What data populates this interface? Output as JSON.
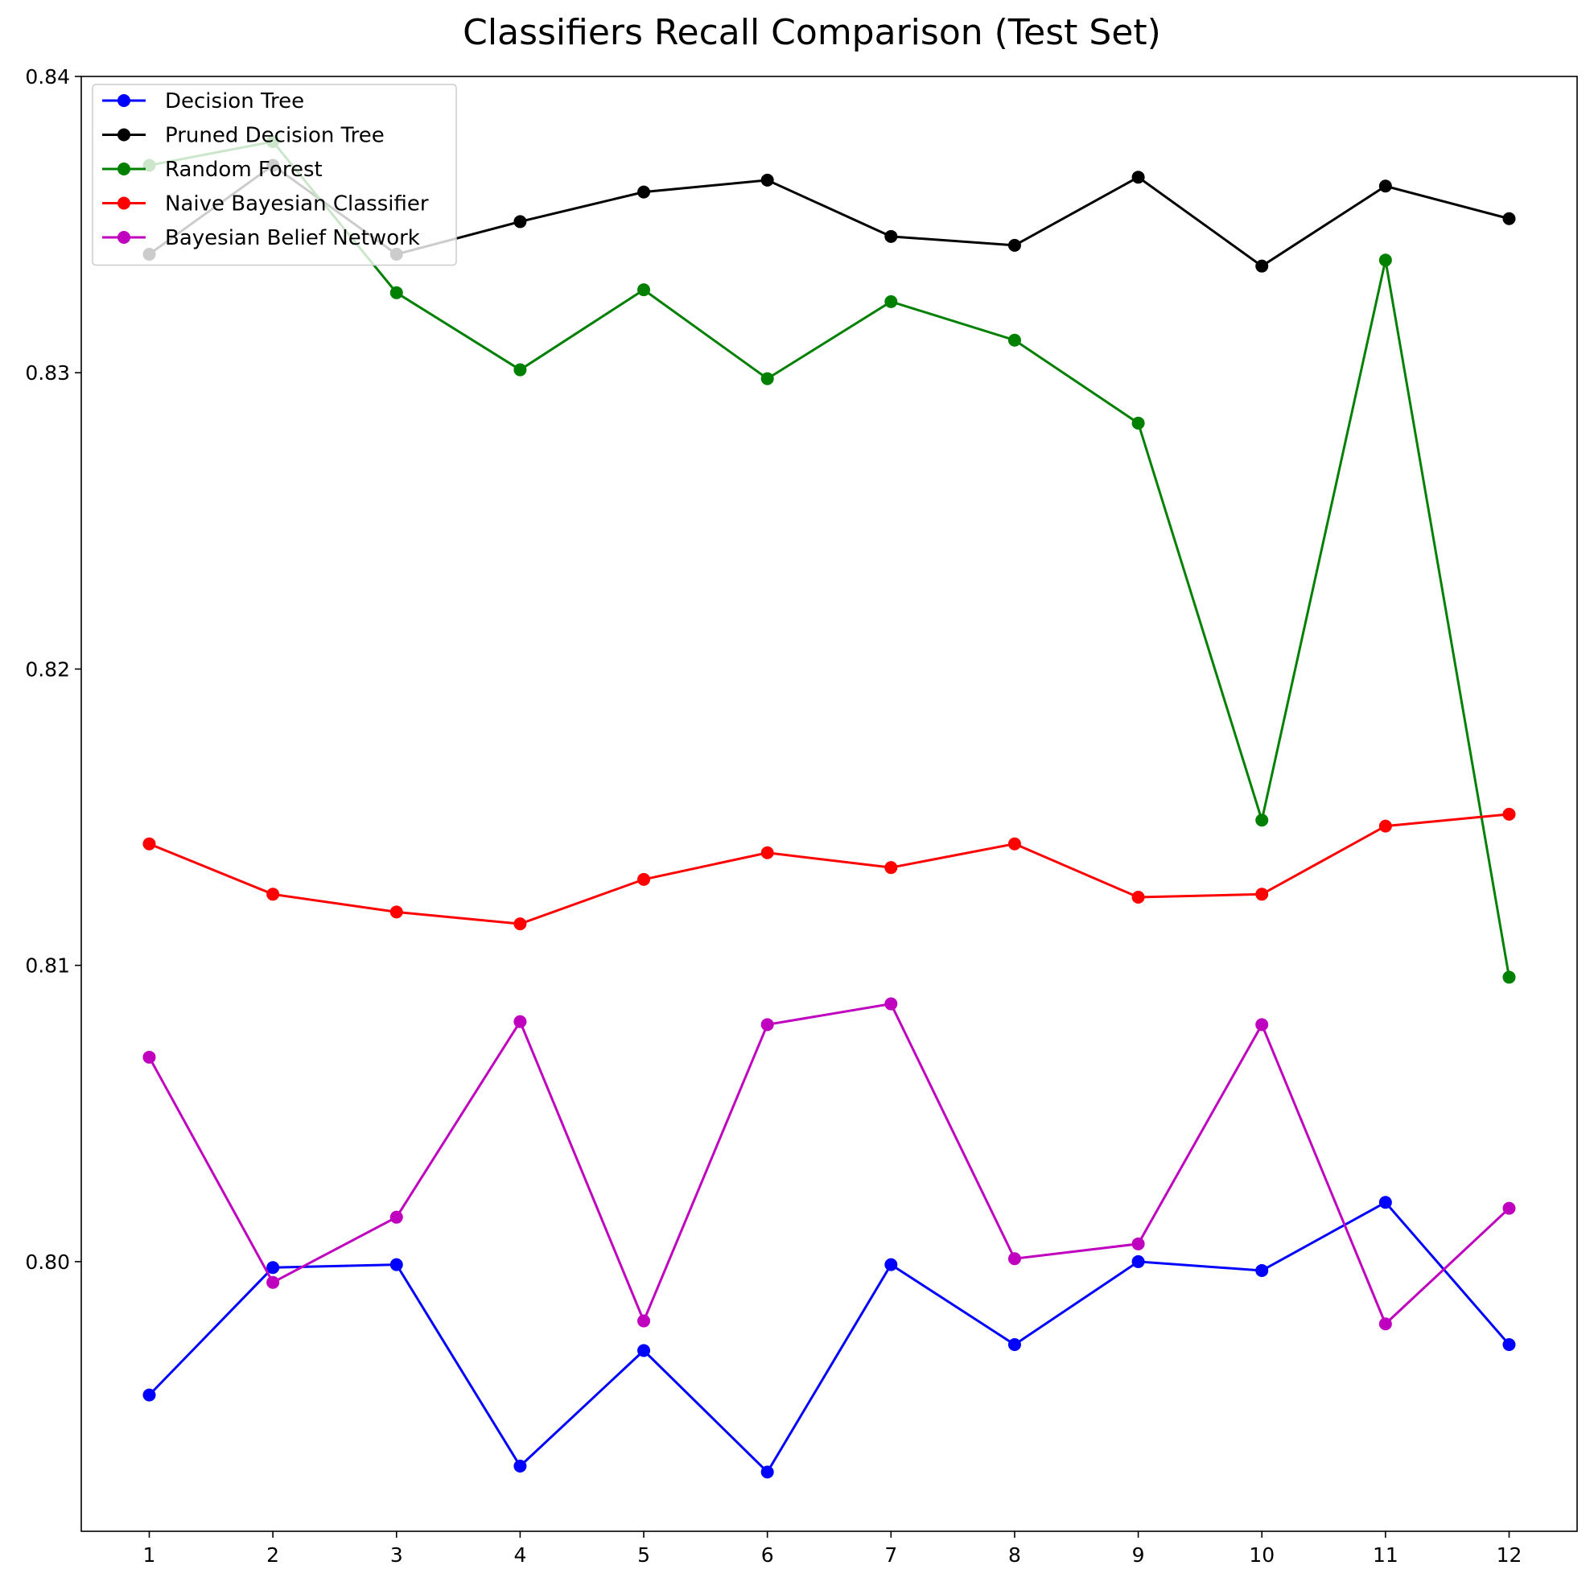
{
  "chart_data": {
    "type": "line",
    "title": "Classifiers Recall Comparison (Test Set)",
    "xlabel": "",
    "ylabel": "",
    "x": [
      1,
      2,
      3,
      4,
      5,
      6,
      7,
      8,
      9,
      10,
      11,
      12
    ],
    "xlim": [
      0.45,
      12.55
    ],
    "ylim": [
      0.7909,
      0.84
    ],
    "yticks": [
      0.8,
      0.81,
      0.82,
      0.83,
      0.84
    ],
    "ytick_labels": [
      "0.80",
      "0.81",
      "0.82",
      "0.83",
      "0.84"
    ],
    "grid": false,
    "legend_position": "top-left",
    "series": [
      {
        "name": "Decision Tree",
        "color": "#0000ff",
        "values": [
          0.7955,
          0.7998,
          0.7999,
          0.7931,
          0.797,
          0.7929,
          0.7999,
          0.7972,
          0.8,
          0.7997,
          0.802,
          0.7972
        ]
      },
      {
        "name": "Pruned Decision Tree",
        "color": "#000000",
        "values": [
          0.834,
          0.837,
          0.834,
          0.8351,
          0.8361,
          0.8365,
          0.8346,
          0.8343,
          0.8366,
          0.8336,
          0.8363,
          0.8352
        ]
      },
      {
        "name": "Random Forest",
        "color": "#008000",
        "values": [
          0.837,
          0.8378,
          0.8327,
          0.8301,
          0.8328,
          0.8298,
          0.8324,
          0.8311,
          0.8283,
          0.8149,
          0.8338,
          0.8096
        ]
      },
      {
        "name": "Naive Bayesian Classifier",
        "color": "#ff0000",
        "values": [
          0.8141,
          0.8124,
          0.8118,
          0.8114,
          0.8129,
          0.8138,
          0.8133,
          0.8141,
          0.8123,
          0.8124,
          0.8147,
          0.8151
        ]
      },
      {
        "name": "Bayesian Belief Network",
        "color": "#bf00bf",
        "values": [
          0.8069,
          0.7993,
          0.8015,
          0.8081,
          0.798,
          0.808,
          0.8087,
          0.8001,
          0.8006,
          0.808,
          0.7979,
          0.8018
        ]
      }
    ]
  }
}
